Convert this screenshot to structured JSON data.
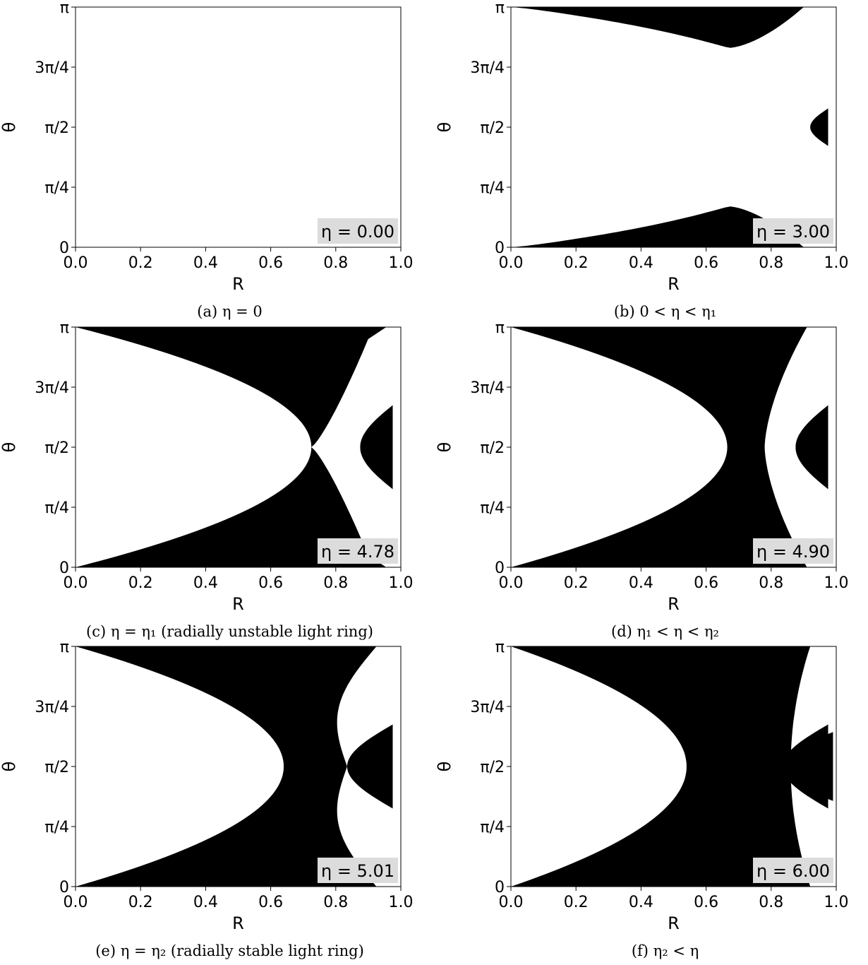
{
  "chart_data": [
    {
      "type": "area",
      "caption": "(a) η = 0",
      "xlabel": "R",
      "ylabel": "θ",
      "xlim": [
        0,
        1
      ],
      "ylim": [
        0,
        3.14159
      ],
      "x_ticks": [
        "0.0",
        "0.2",
        "0.4",
        "0.6",
        "0.8",
        "1.0"
      ],
      "y_ticks": [
        "0",
        "π/4",
        "π/2",
        "3π/4",
        "π"
      ],
      "annotation": "η = 0.00",
      "eta": 0.0
    },
    {
      "type": "area",
      "caption": "(b) 0 < η < η₁",
      "xlabel": "R",
      "ylabel": "θ",
      "xlim": [
        0,
        1
      ],
      "ylim": [
        0,
        3.14159
      ],
      "x_ticks": [
        "0.0",
        "0.2",
        "0.4",
        "0.6",
        "0.8",
        "1.0"
      ],
      "y_ticks": [
        "0",
        "π/4",
        "π/2",
        "3π/4",
        "π"
      ],
      "annotation": "η = 3.00",
      "eta": 3.0
    },
    {
      "type": "area",
      "caption": "(c) η = η₁ (radially unstable light ring)",
      "xlabel": "R",
      "ylabel": "θ",
      "xlim": [
        0,
        1
      ],
      "ylim": [
        0,
        3.14159
      ],
      "x_ticks": [
        "0.0",
        "0.2",
        "0.4",
        "0.6",
        "0.8",
        "1.0"
      ],
      "y_ticks": [
        "0",
        "π/4",
        "π/2",
        "3π/4",
        "π"
      ],
      "annotation": "η = 4.78",
      "eta": 4.78
    },
    {
      "type": "area",
      "caption": "(d) η₁ < η < η₂",
      "xlabel": "R",
      "ylabel": "θ",
      "xlim": [
        0,
        1
      ],
      "ylim": [
        0,
        3.14159
      ],
      "x_ticks": [
        "0.0",
        "0.2",
        "0.4",
        "0.6",
        "0.8",
        "1.0"
      ],
      "y_ticks": [
        "0",
        "π/4",
        "π/2",
        "3π/4",
        "π"
      ],
      "annotation": "η = 4.90",
      "eta": 4.9
    },
    {
      "type": "area",
      "caption": "(e) η = η₂ (radially stable light ring)",
      "xlabel": "R",
      "ylabel": "θ",
      "xlim": [
        0,
        1
      ],
      "ylim": [
        0,
        3.14159
      ],
      "x_ticks": [
        "0.0",
        "0.2",
        "0.4",
        "0.6",
        "0.8",
        "1.0"
      ],
      "y_ticks": [
        "0",
        "π/4",
        "π/2",
        "3π/4",
        "π"
      ],
      "annotation": "η = 5.01",
      "eta": 5.01
    },
    {
      "type": "area",
      "caption": "(f) η₂ < η",
      "xlabel": "R",
      "ylabel": "θ",
      "xlim": [
        0,
        1
      ],
      "ylim": [
        0,
        3.14159
      ],
      "x_ticks": [
        "0.0",
        "0.2",
        "0.4",
        "0.6",
        "0.8",
        "1.0"
      ],
      "y_ticks": [
        "0",
        "π/4",
        "π/2",
        "3π/4",
        "π"
      ],
      "annotation": "η = 6.00",
      "eta": 6.0
    }
  ]
}
